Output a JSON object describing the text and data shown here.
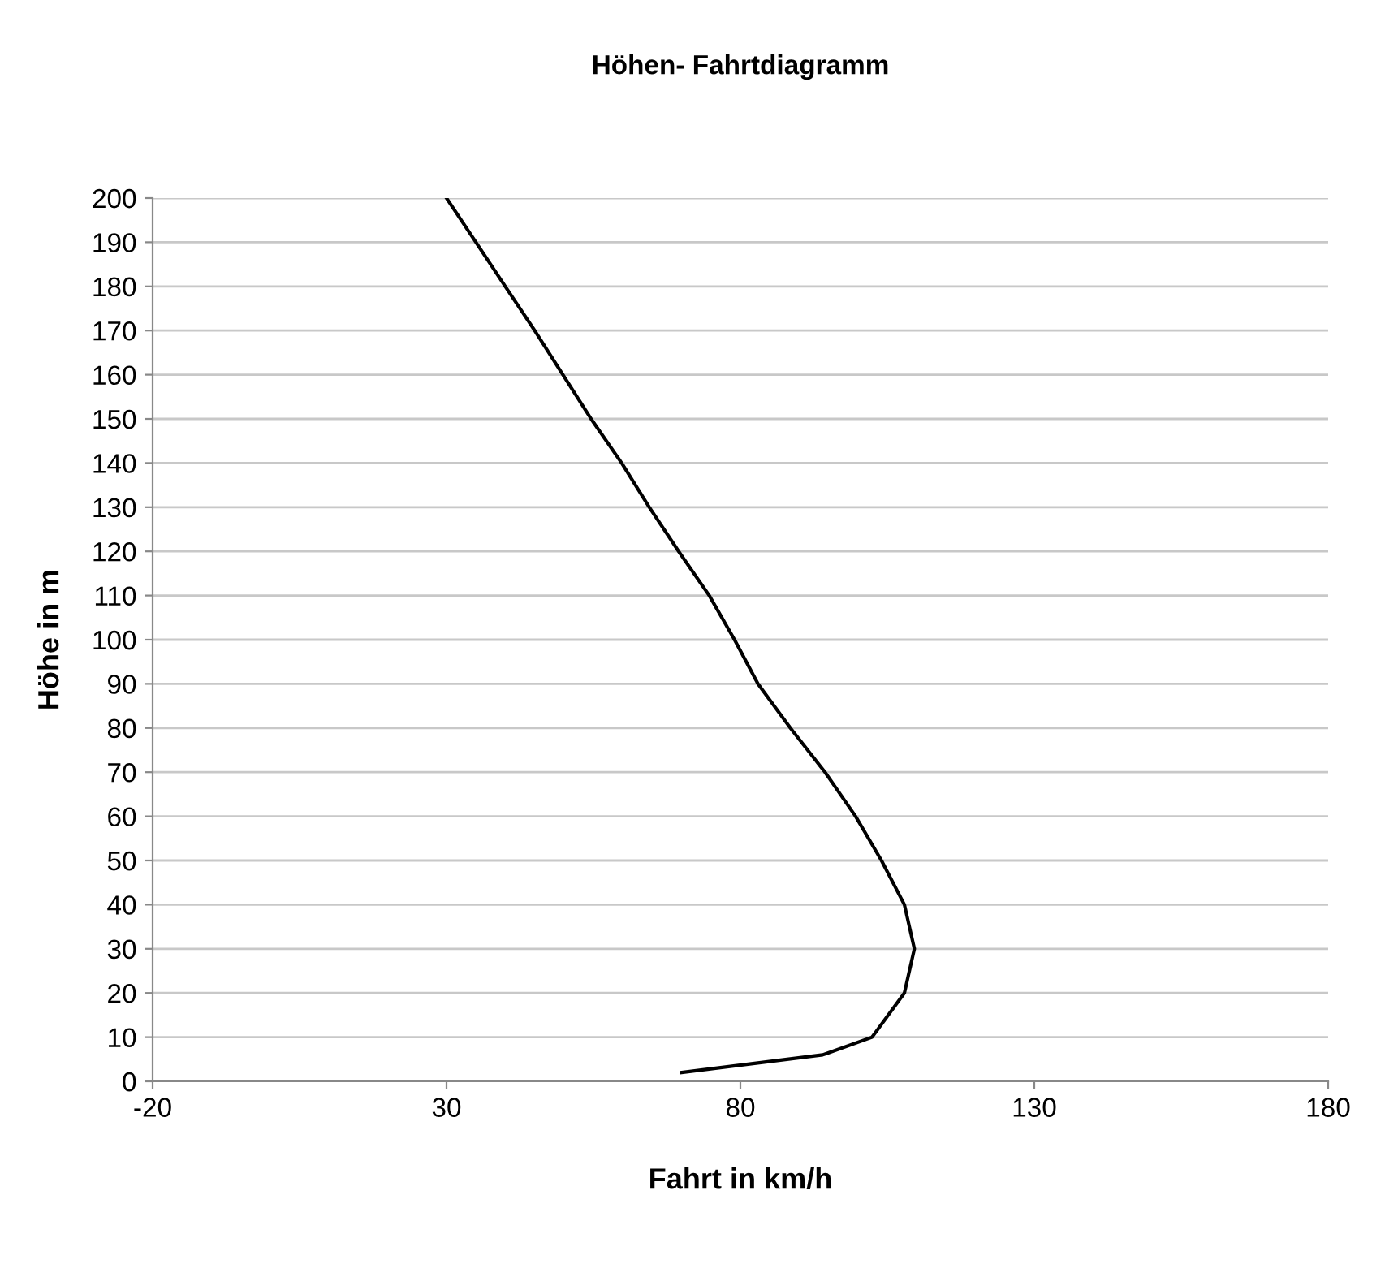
{
  "chart_data": {
    "type": "line",
    "title": "Höhen- Fahrtdiagramm",
    "xlabel": "Fahrt in km/h",
    "ylabel": "Höhe in m",
    "series": [
      {
        "color": "#000000",
        "x": [
          70,
          94,
          102.4,
          107.9,
          109.6,
          107.9,
          104,
          99.6,
          94.4,
          88.5,
          83,
          79,
          74.7,
          69.5,
          64.5,
          59.8,
          54.6,
          49.8,
          45,
          40,
          35,
          30
        ],
        "values": [
          2,
          6,
          10,
          20,
          30,
          40,
          50,
          60,
          70,
          80,
          90,
          100,
          110,
          120,
          130,
          140,
          150,
          160,
          170,
          180,
          190,
          200
        ]
      }
    ],
    "xlim": [
      -20,
      180
    ],
    "xticks": [
      -20,
      30,
      80,
      130,
      180
    ],
    "ylim": [
      0,
      200
    ],
    "yticks": [
      0,
      10,
      20,
      30,
      40,
      50,
      60,
      70,
      80,
      90,
      100,
      110,
      120,
      130,
      140,
      150,
      160,
      170,
      180,
      190,
      200
    ],
    "grid": "y",
    "legend": false,
    "marker": "none",
    "line_style": "solid"
  }
}
